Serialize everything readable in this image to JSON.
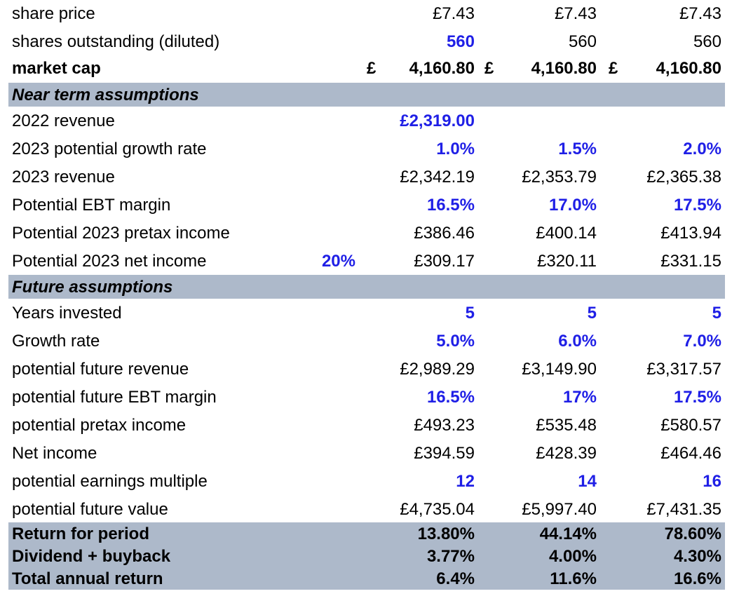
{
  "header_rows": [
    {
      "label": "share price",
      "v1": "£7.43",
      "v2": "£7.43",
      "v3": "£7.43",
      "blue1": false
    },
    {
      "label": "shares outstanding (diluted)",
      "v1": "560",
      "v2": "560",
      "v3": "560",
      "blue1": true
    }
  ],
  "market_cap": {
    "label": "market cap",
    "currency": "£",
    "v1": "4,160.80",
    "v2": "4,160.80",
    "v3": "4,160.80"
  },
  "near_term": {
    "title": "Near term assumptions",
    "revenue_2022": {
      "label": "2022 revenue",
      "v1": "£2,319.00"
    },
    "growth_2023": {
      "label": "2023 potential growth rate",
      "v1": "1.0%",
      "v2": "1.5%",
      "v3": "2.0%"
    },
    "revenue_2023": {
      "label": "2023 revenue",
      "v1": "£2,342.19",
      "v2": "£2,353.79",
      "v3": "£2,365.38"
    },
    "ebt_margin": {
      "label": "Potential EBT margin",
      "v1": "16.5%",
      "v2": "17.0%",
      "v3": "17.5%"
    },
    "pretax_2023": {
      "label": "Potential 2023 pretax income",
      "v1": "£386.46",
      "v2": "£400.14",
      "v3": "£413.94"
    },
    "net_2023": {
      "label": "Potential 2023 net income",
      "tax": "20%",
      "v1": "£309.17",
      "v2": "£320.11",
      "v3": "£331.15"
    }
  },
  "future": {
    "title": "Future assumptions",
    "years": {
      "label": "Years invested",
      "v1": "5",
      "v2": "5",
      "v3": "5"
    },
    "growth": {
      "label": "Growth rate",
      "v1": "5.0%",
      "v2": "6.0%",
      "v3": "7.0%"
    },
    "revenue": {
      "label": "potential future revenue",
      "v1": "£2,989.29",
      "v2": "£3,149.90",
      "v3": "£3,317.57"
    },
    "ebt_margin": {
      "label": "potential future EBT margin",
      "v1": "16.5%",
      "v2": "17%",
      "v3": "17.5%"
    },
    "pretax": {
      "label": "potential pretax income",
      "v1": "£493.23",
      "v2": "£535.48",
      "v3": "£580.57"
    },
    "net": {
      "label": "Net income",
      "v1": "£394.59",
      "v2": "£428.39",
      "v3": "£464.46"
    },
    "multiple": {
      "label": "potential earnings multiple",
      "v1": "12",
      "v2": "14",
      "v3": "16"
    },
    "value": {
      "label": "potential future value",
      "v1": "£4,735.04",
      "v2": "£5,997.40",
      "v3": "£7,431.35"
    }
  },
  "summary": {
    "return_period": {
      "label": "Return for period",
      "v1": "13.80%",
      "v2": "44.14%",
      "v3": "78.60%"
    },
    "dividend": {
      "label": "Dividend + buyback",
      "v1": "3.77%",
      "v2": "4.00%",
      "v3": "4.30%"
    },
    "total": {
      "label": "Total annual return",
      "v1": "6.4%",
      "v2": "11.6%",
      "v3": "16.6%"
    }
  },
  "colors": {
    "input_blue": "#1f1fe6",
    "section_fill": "#adb9ca"
  }
}
